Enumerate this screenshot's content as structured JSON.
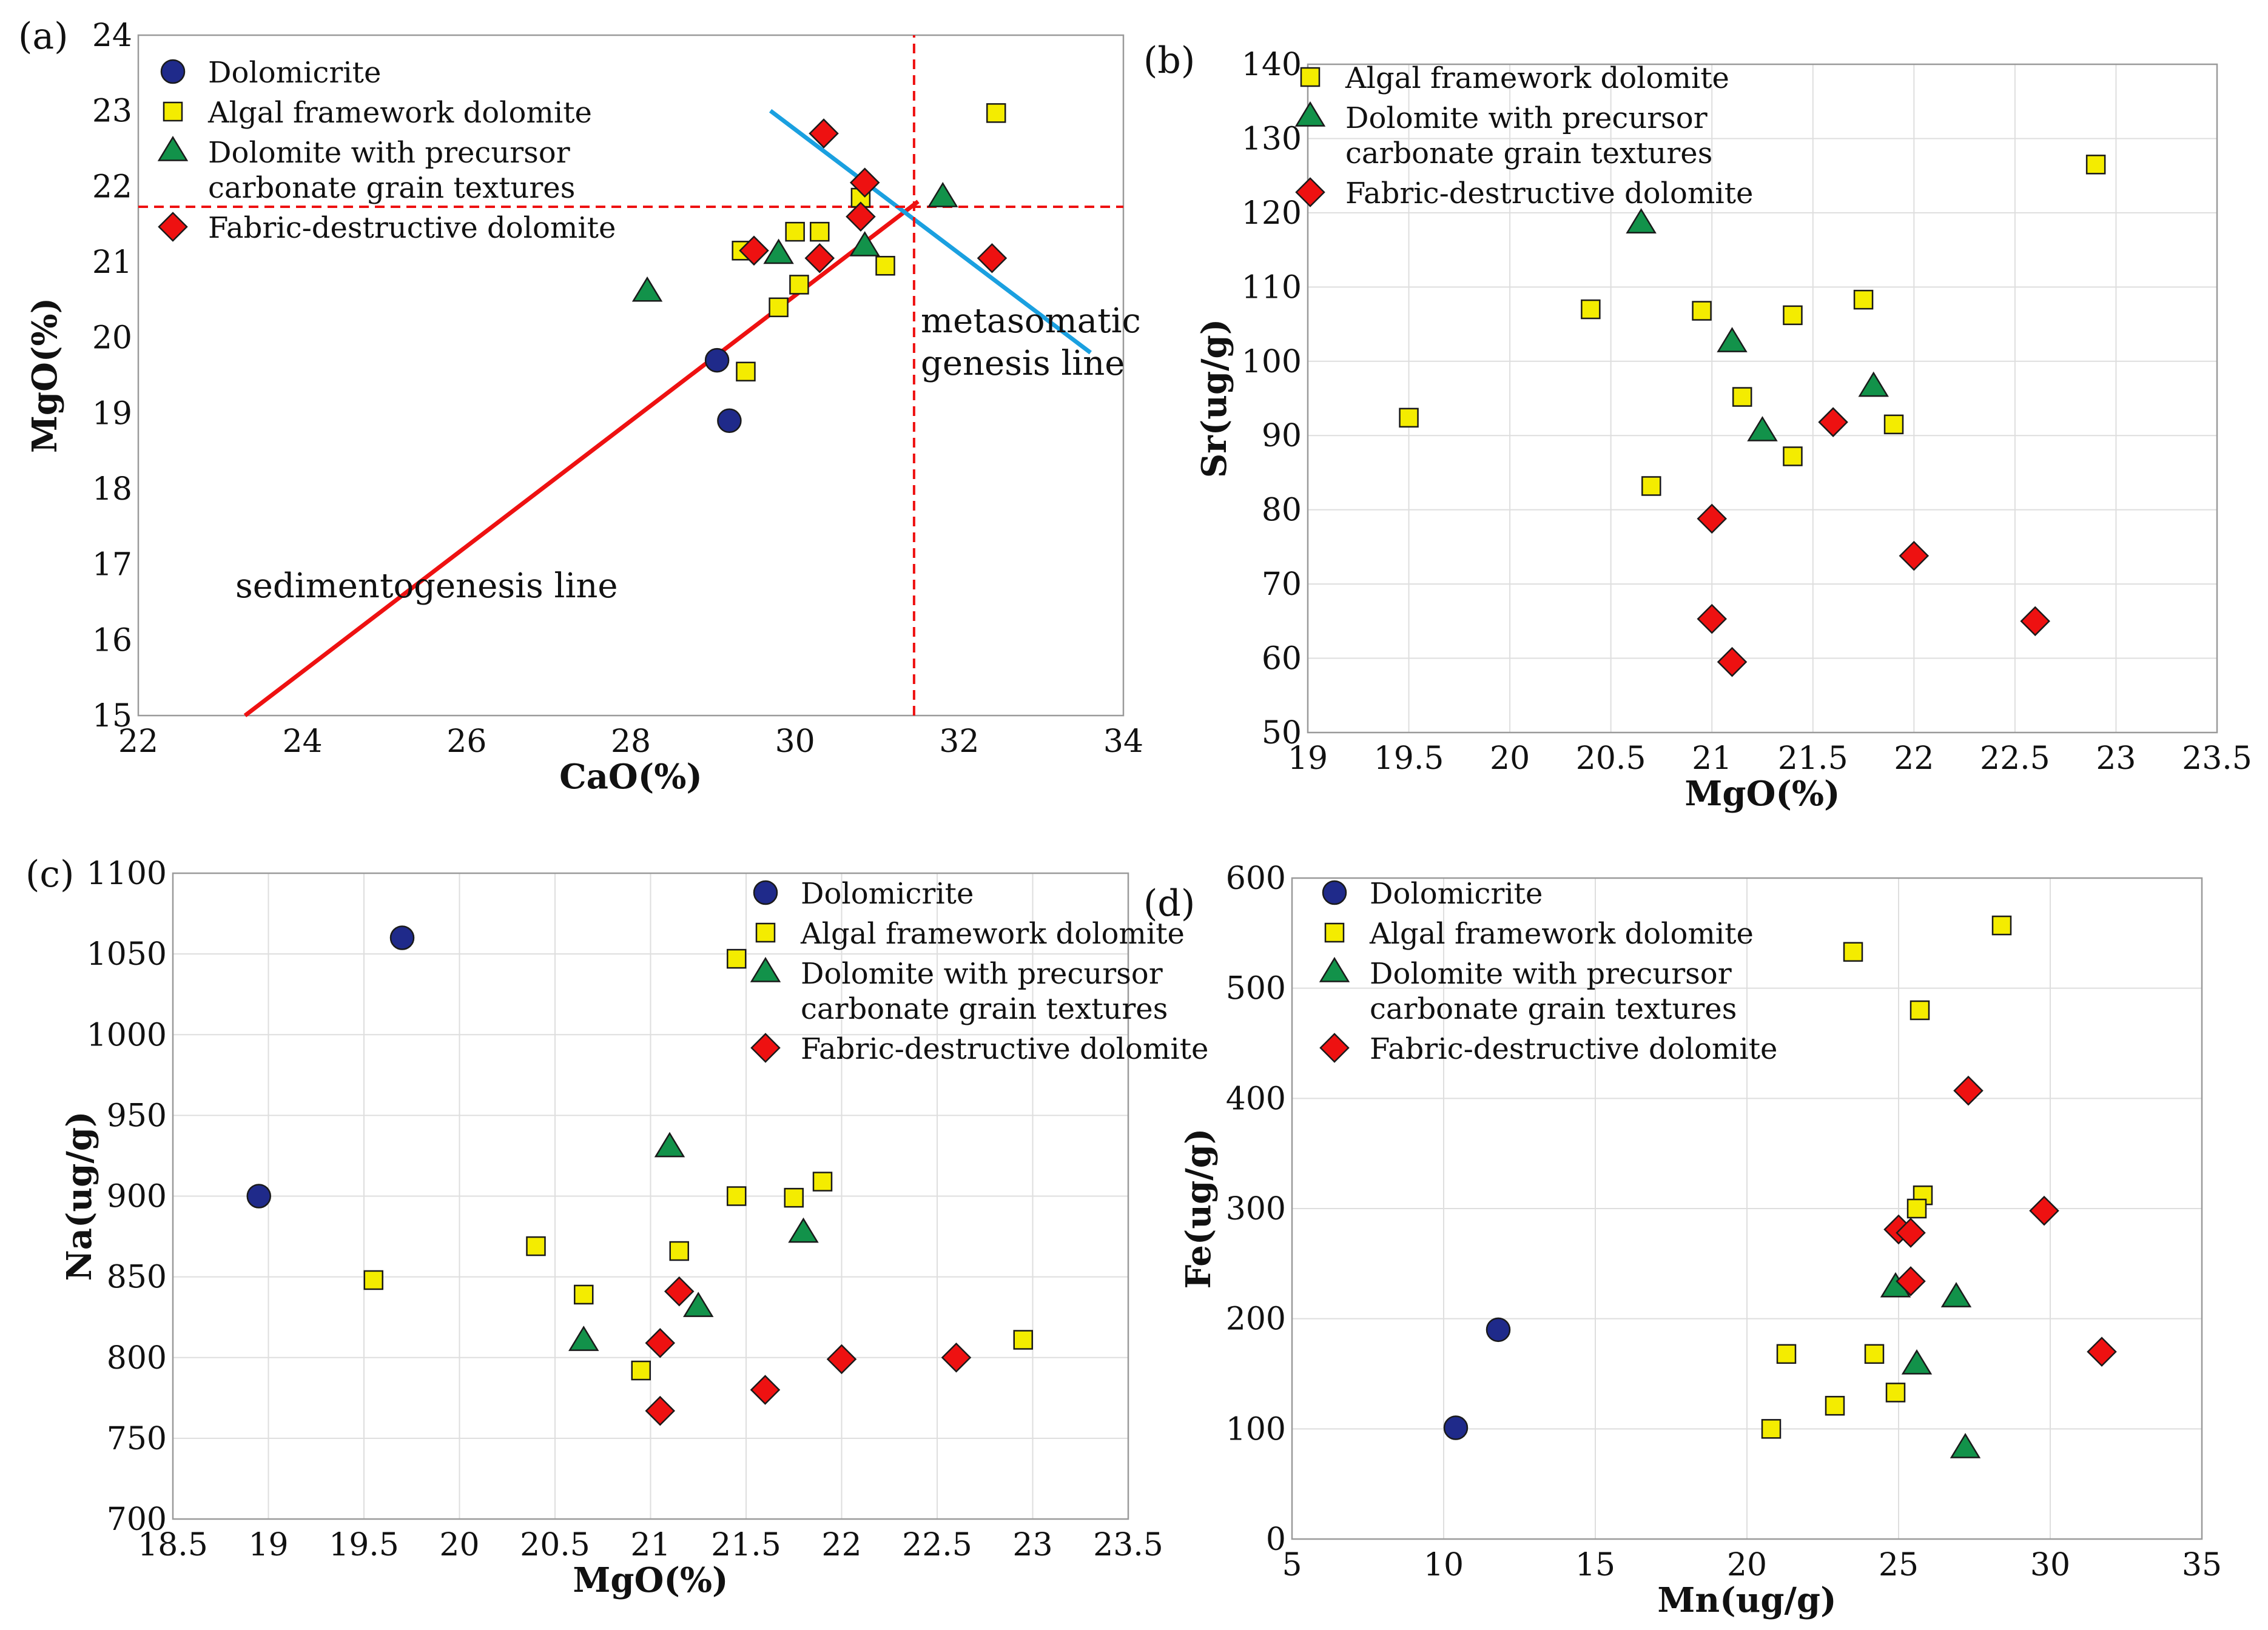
{
  "colors": {
    "dolomicrite": "#1f2a8a",
    "algal": "#f4ec00",
    "precursor": "#12924a",
    "fabric": "#ee1111",
    "sediment_line": "#ee1111",
    "metasomatic_line": "#1aa0e0",
    "grid": "#dedede"
  },
  "chart_data": [
    {
      "id": "a",
      "type": "scatter",
      "panel_label": "(a)",
      "xlabel": "CaO(%)",
      "ylabel": "MgO(%)",
      "xlim": [
        22,
        34
      ],
      "ylim": [
        15,
        24
      ],
      "xticks": [
        "22",
        "24",
        "26",
        "28",
        "30",
        "32",
        "34"
      ],
      "yticks": [
        "15",
        "16",
        "17",
        "18",
        "19",
        "20",
        "21",
        "22",
        "23",
        "24"
      ],
      "grid": false,
      "legend_position": "top-left",
      "legend": [
        "Dolomicrite",
        "Algal framework dolomite",
        "Dolomite with precursor|carbonate grain textures",
        "Fabric-destructive dolomite"
      ],
      "series": [
        {
          "name": "Dolomicrite",
          "marker": "circle",
          "points": [
            [
              29.05,
              19.7
            ],
            [
              29.2,
              18.9
            ]
          ]
        },
        {
          "name": "Algal framework dolomite",
          "marker": "square",
          "points": [
            [
              32.45,
              22.97
            ],
            [
              30.8,
              21.85
            ],
            [
              30.0,
              21.4
            ],
            [
              30.3,
              21.4
            ],
            [
              29.35,
              21.15
            ],
            [
              31.1,
              20.95
            ],
            [
              30.05,
              20.7
            ],
            [
              29.8,
              20.4
            ],
            [
              29.4,
              19.55
            ]
          ]
        },
        {
          "name": "Dolomite with precursor carbonate grain textures",
          "marker": "triangle",
          "points": [
            [
              31.8,
              21.85
            ],
            [
              29.8,
              21.1
            ],
            [
              30.85,
              21.2
            ],
            [
              28.2,
              20.6
            ]
          ]
        },
        {
          "name": "Fabric-destructive dolomite",
          "marker": "diamond",
          "points": [
            [
              30.35,
              22.7
            ],
            [
              30.85,
              22.05
            ],
            [
              30.8,
              21.6
            ],
            [
              29.5,
              21.15
            ],
            [
              30.3,
              21.05
            ],
            [
              32.4,
              21.05
            ]
          ]
        }
      ],
      "lines": [
        {
          "name": "sedimentogenesis line",
          "label": "sedimentogenesis line",
          "style": "solid",
          "color_key": "sediment_line",
          "from": [
            23.3,
            15.0
          ],
          "to": [
            31.5,
            21.8
          ]
        },
        {
          "name": "metasomatic genesis line",
          "label": "metasomatic|genesis line",
          "style": "solid",
          "color_key": "metasomatic_line",
          "from": [
            29.7,
            23.0
          ],
          "to": [
            33.6,
            19.8
          ]
        },
        {
          "name": "horizontal reference",
          "style": "dashed",
          "color_key": "sediment_line",
          "from": [
            22,
            21.73
          ],
          "to": [
            34,
            21.73
          ]
        },
        {
          "name": "vertical reference",
          "style": "dashed",
          "color_key": "sediment_line",
          "from": [
            31.45,
            15
          ],
          "to": [
            31.45,
            24
          ]
        }
      ]
    },
    {
      "id": "b",
      "type": "scatter",
      "panel_label": "(b)",
      "xlabel": "MgO(%)",
      "ylabel": "Sr(ug/g)",
      "xlim": [
        19,
        23.5
      ],
      "ylim": [
        50,
        140
      ],
      "xticks": [
        "19",
        "19.5",
        "20",
        "20.5",
        "21",
        "21.5",
        "22",
        "22.5",
        "23",
        "23.5"
      ],
      "yticks": [
        "50",
        "60",
        "70",
        "80",
        "90",
        "100",
        "110",
        "120",
        "130",
        "140"
      ],
      "grid": true,
      "legend_position": "top-left",
      "legend": [
        "Algal framework dolomite",
        "Dolomite with precursor|carbonate grain textures",
        "Fabric-destructive dolomite"
      ],
      "series": [
        {
          "name": "Algal framework dolomite",
          "marker": "square",
          "points": [
            [
              22.9,
              126.5
            ],
            [
              20.4,
              107
            ],
            [
              20.95,
              106.8
            ],
            [
              21.4,
              106.2
            ],
            [
              21.75,
              108.3
            ],
            [
              21.15,
              95.2
            ],
            [
              19.5,
              92.4
            ],
            [
              21.9,
              91.5
            ],
            [
              21.4,
              87.2
            ],
            [
              20.7,
              83.2
            ]
          ]
        },
        {
          "name": "Dolomite with precursor carbonate grain textures",
          "marker": "triangle",
          "points": [
            [
              20.65,
              118.5
            ],
            [
              21.1,
              102.5
            ],
            [
              21.8,
              96.5
            ],
            [
              21.25,
              90.5
            ]
          ]
        },
        {
          "name": "Fabric-destructive dolomite",
          "marker": "diamond",
          "points": [
            [
              21.6,
              91.8
            ],
            [
              21.0,
              78.8
            ],
            [
              22.0,
              73.8
            ],
            [
              21.0,
              65.3
            ],
            [
              22.6,
              65.0
            ],
            [
              21.1,
              59.5
            ]
          ]
        }
      ]
    },
    {
      "id": "c",
      "type": "scatter",
      "panel_label": "(c)",
      "xlabel": "MgO(%)",
      "ylabel": "Na(ug/g)",
      "xlim": [
        18.5,
        23.5
      ],
      "ylim": [
        700,
        1100
      ],
      "xticks": [
        "18.5",
        "19",
        "19.5",
        "20",
        "20.5",
        "21",
        "21.5",
        "22",
        "22.5",
        "23",
        "23.5"
      ],
      "yticks": [
        "700",
        "750",
        "800",
        "850",
        "900",
        "950",
        "1000",
        "1050",
        "1100"
      ],
      "grid": true,
      "legend_position": "top-right",
      "legend": [
        "Dolomicrite",
        "Algal framework dolomite",
        "Dolomite with precursor|carbonate grain textures",
        "Fabric-destructive dolomite"
      ],
      "series": [
        {
          "name": "Dolomicrite",
          "marker": "circle",
          "points": [
            [
              19.7,
              1060
            ],
            [
              18.95,
              900
            ]
          ]
        },
        {
          "name": "Algal framework dolomite",
          "marker": "square",
          "points": [
            [
              21.45,
              1047
            ],
            [
              21.9,
              909
            ],
            [
              21.45,
              900
            ],
            [
              21.75,
              899
            ],
            [
              20.4,
              869
            ],
            [
              21.15,
              866
            ],
            [
              19.55,
              848
            ],
            [
              20.65,
              839
            ],
            [
              20.95,
              792
            ],
            [
              22.95,
              811
            ]
          ]
        },
        {
          "name": "Dolomite with precursor carbonate grain textures",
          "marker": "triangle",
          "points": [
            [
              21.1,
              930
            ],
            [
              21.8,
              877
            ],
            [
              21.25,
              831
            ],
            [
              20.65,
              810
            ]
          ]
        },
        {
          "name": "Fabric-destructive dolomite",
          "marker": "diamond",
          "points": [
            [
              21.15,
              841
            ],
            [
              21.05,
              809
            ],
            [
              22.0,
              799
            ],
            [
              22.6,
              800
            ],
            [
              21.6,
              780
            ],
            [
              21.05,
              767
            ]
          ]
        }
      ]
    },
    {
      "id": "d",
      "type": "scatter",
      "panel_label": "(d)",
      "xlabel": "Mn(ug/g)",
      "ylabel": "Fe(ug/g)",
      "xlim": [
        5,
        35
      ],
      "ylim": [
        0,
        600
      ],
      "xticks": [
        "5",
        "10",
        "15",
        "20",
        "25",
        "30",
        "35"
      ],
      "yticks": [
        "0",
        "100",
        "200",
        "300",
        "400",
        "500",
        "600"
      ],
      "grid": true,
      "legend_position": "top-left",
      "legend": [
        "Dolomicrite",
        "Algal framework dolomite",
        "Dolomite with precursor|carbonate grain textures",
        "Fabric-destructive dolomite"
      ],
      "series": [
        {
          "name": "Dolomicrite",
          "marker": "circle",
          "points": [
            [
              11.8,
              190
            ],
            [
              10.4,
              101
            ]
          ]
        },
        {
          "name": "Algal framework dolomite",
          "marker": "square",
          "points": [
            [
              28.4,
              557
            ],
            [
              23.5,
              533
            ],
            [
              25.7,
              480
            ],
            [
              25.8,
              312
            ],
            [
              25.6,
              300
            ],
            [
              21.3,
              168
            ],
            [
              24.2,
              168
            ],
            [
              24.9,
              133
            ],
            [
              22.9,
              121
            ],
            [
              20.8,
              100
            ]
          ]
        },
        {
          "name": "Dolomite with precursor carbonate grain textures",
          "marker": "triangle",
          "points": [
            [
              24.9,
              228
            ],
            [
              26.9,
              219
            ],
            [
              25.6,
              158
            ],
            [
              27.2,
              82
            ]
          ]
        },
        {
          "name": "Fabric-destructive dolomite",
          "marker": "diamond",
          "points": [
            [
              27.3,
              407
            ],
            [
              29.8,
              298
            ],
            [
              25.0,
              281
            ],
            [
              25.4,
              278
            ],
            [
              25.4,
              234
            ],
            [
              31.7,
              170
            ]
          ]
        }
      ]
    }
  ]
}
